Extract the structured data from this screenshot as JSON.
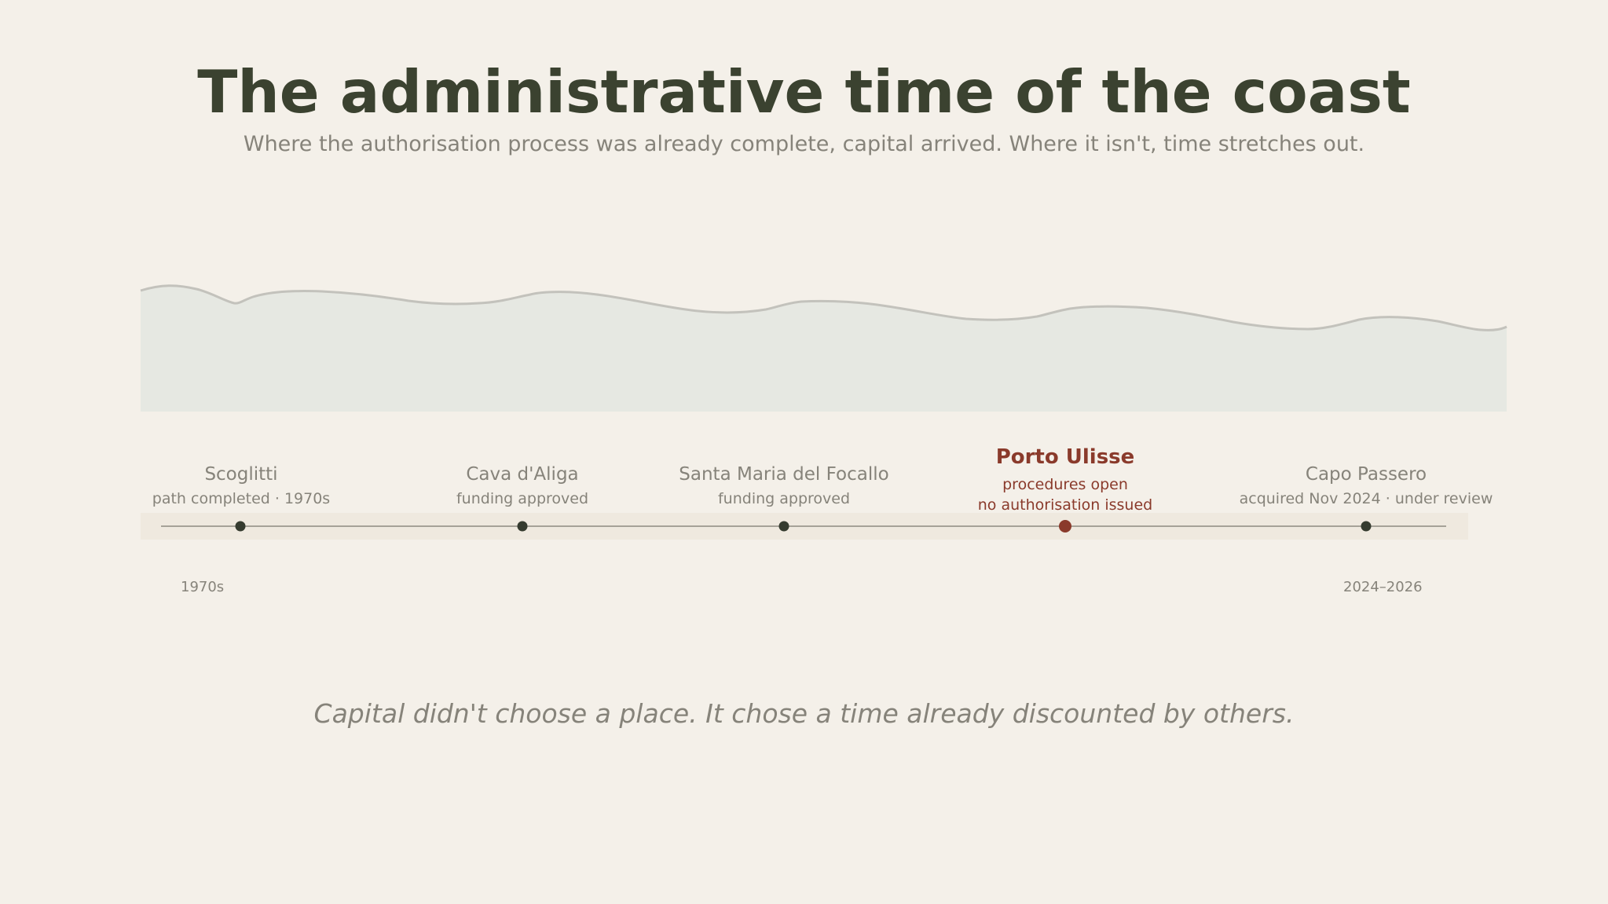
{
  "header": {
    "title": "The administrative time of the coast",
    "subtitle": "Where the authorisation process was already complete, capital arrived. Where it isn't, time stretches out."
  },
  "timeline": {
    "start_label": "1970s",
    "end_label": "2024–2026",
    "sites": [
      {
        "name": "Scoglitti",
        "notes": [
          "path completed · 1970s"
        ],
        "highlight": false
      },
      {
        "name": "Cava d'Aliga",
        "notes": [
          "funding approved"
        ],
        "highlight": false
      },
      {
        "name": "Santa Maria del Focallo",
        "notes": [
          "funding approved"
        ],
        "highlight": false
      },
      {
        "name": "Porto Ulisse",
        "notes": [
          "procedures open",
          "no authorisation issued"
        ],
        "highlight": true
      },
      {
        "name": "Capo Passero",
        "notes": [
          "acquired Nov 2024 · under review"
        ],
        "highlight": false
      }
    ]
  },
  "footer": {
    "closing": "Capital didn't choose a place. It chose a time already discounted by others."
  },
  "colors": {
    "background": "#f4f0e9",
    "title": "#3b4230",
    "muted_text": "#86837a",
    "highlight": "#8a3a2b",
    "dot": "#353b2f",
    "sea_fill": "#e6e8e2",
    "coast_line": "#c3c2bc",
    "timeline_band": "#efe9df",
    "timeline_line": "#8d8b81"
  }
}
